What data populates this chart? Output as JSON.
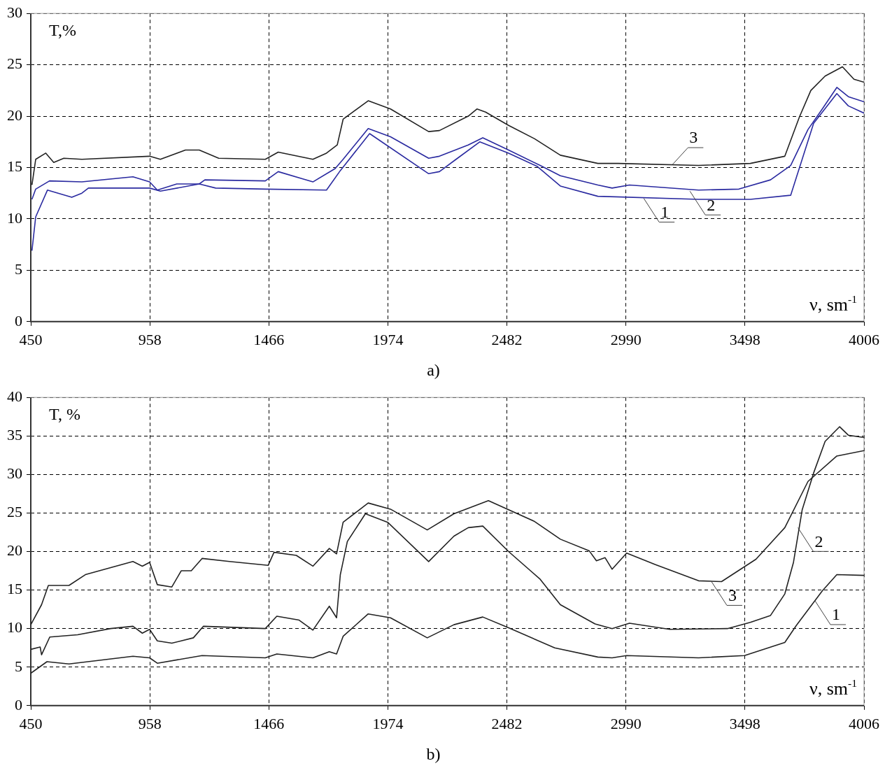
{
  "chart_data": [
    {
      "type": "line",
      "title": "a)",
      "xlabel": "ν, sm$^{-1}$",
      "ylabel": "T,%",
      "xlim": [
        450,
        4006
      ],
      "xticks": [
        450,
        958,
        1466,
        1974,
        2482,
        2990,
        3498,
        4006
      ],
      "ylim": [
        0,
        30
      ],
      "yticks": [
        0,
        5,
        10,
        15,
        20,
        25,
        30
      ],
      "grid": true,
      "line_style": "solid",
      "series": [
        {
          "color": "#2a2aa0",
          "x": [
            455,
            471,
            521,
            625,
            668,
            696,
            957,
            1003,
            1169,
            1239,
            1451,
            1712,
            1771,
            1896,
            2148,
            2194,
            2265,
            2366,
            2489,
            2612,
            2710,
            2870,
            3300,
            3521,
            3693,
            3742,
            3791,
            3890,
            3939,
            4006
          ],
          "values": [
            6.9,
            10.2,
            12.8,
            12.1,
            12.5,
            13.0,
            13.0,
            12.7,
            13.4,
            13.0,
            12.9,
            12.8,
            14.7,
            18.3,
            14.4,
            14.6,
            15.8,
            17.5,
            16.4,
            15.1,
            13.2,
            12.2,
            11.9,
            11.9,
            12.3,
            15.8,
            19.3,
            22.2,
            21.0,
            20.3
          ]
        },
        {
          "color": "#2a2aa0",
          "x": [
            455,
            471,
            530,
            668,
            886,
            957,
            990,
            1073,
            1169,
            1193,
            1451,
            1506,
            1654,
            1749,
            1783,
            1890,
            1985,
            2148,
            2194,
            2317,
            2379,
            2489,
            2624,
            2710,
            2870,
            2931,
            3005,
            3300,
            3472,
            3607,
            3693,
            3767,
            3828,
            3890,
            3939,
            4006
          ],
          "values": [
            11.9,
            12.9,
            13.7,
            13.6,
            14.1,
            13.6,
            12.8,
            13.4,
            13.4,
            13.8,
            13.7,
            14.6,
            13.6,
            14.9,
            15.8,
            18.8,
            18.0,
            15.9,
            16.1,
            17.2,
            17.9,
            16.7,
            15.2,
            14.2,
            13.3,
            13.0,
            13.3,
            12.8,
            12.9,
            13.8,
            15.2,
            18.7,
            20.7,
            22.8,
            21.9,
            21.4
          ]
        },
        {
          "color": "#222222",
          "x": [
            455,
            471,
            514,
            548,
            591,
            668,
            957,
            1003,
            1110,
            1169,
            1252,
            1451,
            1506,
            1654,
            1712,
            1758,
            1783,
            1890,
            1985,
            2148,
            2194,
            2317,
            2354,
            2391,
            2489,
            2600,
            2710,
            2870,
            2956,
            3300,
            3521,
            3668,
            3730,
            3779,
            3840,
            3914,
            3963,
            4006
          ],
          "values": [
            13.3,
            15.8,
            16.4,
            15.5,
            15.9,
            15.8,
            16.1,
            15.8,
            16.7,
            16.7,
            15.9,
            15.8,
            16.5,
            15.8,
            16.4,
            17.2,
            19.7,
            21.5,
            20.7,
            18.5,
            18.6,
            20.0,
            20.7,
            20.4,
            19.1,
            17.8,
            16.2,
            15.4,
            15.4,
            15.2,
            15.4,
            16.1,
            19.9,
            22.5,
            23.9,
            24.8,
            23.6,
            23.3
          ]
        }
      ],
      "annotations": [
        {
          "text": "1",
          "x": 3066,
          "y": 12.0
        },
        {
          "text": "2",
          "x": 3263,
          "y": 12.7
        },
        {
          "text": "3",
          "x": 3189,
          "y": 15.3
        }
      ]
    },
    {
      "type": "line",
      "title": "b)",
      "xlabel": "ν, sm$^{-1}$",
      "ylabel": "T, %",
      "xlim": [
        450,
        4006
      ],
      "xticks": [
        450,
        958,
        1466,
        1974,
        2482,
        2990,
        3498,
        4006
      ],
      "ylim": [
        0,
        40
      ],
      "yticks": [
        0,
        5,
        10,
        15,
        20,
        25,
        30,
        35,
        40
      ],
      "grid": true,
      "line_style": "solid",
      "series": [
        {
          "color": "#222222",
          "x": [
            450,
            519,
            613,
            886,
            957,
            990,
            1181,
            1451,
            1500,
            1654,
            1724,
            1755,
            1783,
            1890,
            1985,
            2142,
            2256,
            2379,
            2489,
            2686,
            2870,
            2931,
            2993,
            3300,
            3496,
            3668,
            3717,
            3828,
            3890,
            4006
          ],
          "values": [
            4.2,
            5.7,
            5.4,
            6.4,
            6.2,
            5.5,
            6.5,
            6.2,
            6.7,
            6.2,
            7.0,
            6.7,
            9.0,
            11.9,
            11.4,
            8.8,
            10.5,
            11.5,
            10.1,
            7.5,
            6.3,
            6.2,
            6.5,
            6.2,
            6.5,
            8.2,
            10.4,
            14.9,
            17.0,
            16.9
          ]
        },
        {
          "color": "#222222",
          "x": [
            450,
            490,
            496,
            531,
            650,
            791,
            886,
            926,
            957,
            990,
            1052,
            1144,
            1187,
            1451,
            1500,
            1595,
            1654,
            1724,
            1755,
            1771,
            1801,
            1878,
            1973,
            2148,
            2256,
            2317,
            2379,
            2489,
            2624,
            2710,
            2858,
            2931,
            3005,
            3177,
            3423,
            3521,
            3607,
            3668,
            3705,
            3742,
            3791,
            3840,
            3902,
            3939,
            4006
          ],
          "values": [
            7.3,
            7.6,
            6.6,
            8.9,
            9.2,
            10.0,
            10.3,
            9.4,
            9.9,
            8.4,
            8.1,
            8.8,
            10.3,
            10.0,
            11.6,
            11.1,
            9.8,
            12.9,
            11.4,
            17.0,
            21.3,
            24.9,
            23.8,
            18.7,
            22.0,
            23.1,
            23.3,
            20.0,
            16.4,
            13.1,
            10.6,
            10.0,
            10.7,
            9.9,
            10.0,
            10.8,
            11.7,
            14.5,
            18.6,
            25.4,
            30.2,
            34.3,
            36.2,
            35.1,
            34.8
          ]
        },
        {
          "color": "#222222",
          "x": [
            450,
            496,
            525,
            613,
            683,
            886,
            926,
            957,
            990,
            1052,
            1092,
            1135,
            1181,
            1298,
            1463,
            1488,
            1583,
            1654,
            1724,
            1755,
            1783,
            1890,
            1985,
            2142,
            2256,
            2403,
            2600,
            2710,
            2833,
            2864,
            2901,
            2931,
            2993,
            3116,
            3300,
            3398,
            3545,
            3668,
            3767,
            3890,
            4006
          ],
          "values": [
            10.5,
            13.1,
            15.6,
            15.6,
            17.0,
            18.7,
            18.1,
            18.6,
            15.7,
            15.4,
            17.5,
            17.5,
            19.1,
            18.7,
            18.2,
            19.9,
            19.5,
            18.1,
            20.4,
            19.7,
            23.8,
            26.3,
            25.5,
            22.8,
            24.9,
            26.6,
            23.9,
            21.6,
            20.1,
            18.8,
            19.2,
            17.7,
            19.8,
            18.3,
            16.2,
            16.1,
            19.0,
            23.1,
            29.1,
            32.4,
            33.1
          ]
        }
      ],
      "annotations": [
        {
          "text": "1",
          "x": 3797,
          "y": 13.6
        },
        {
          "text": "2",
          "x": 3724,
          "y": 23.1
        },
        {
          "text": "3",
          "x": 3355,
          "y": 16.1
        }
      ]
    }
  ]
}
